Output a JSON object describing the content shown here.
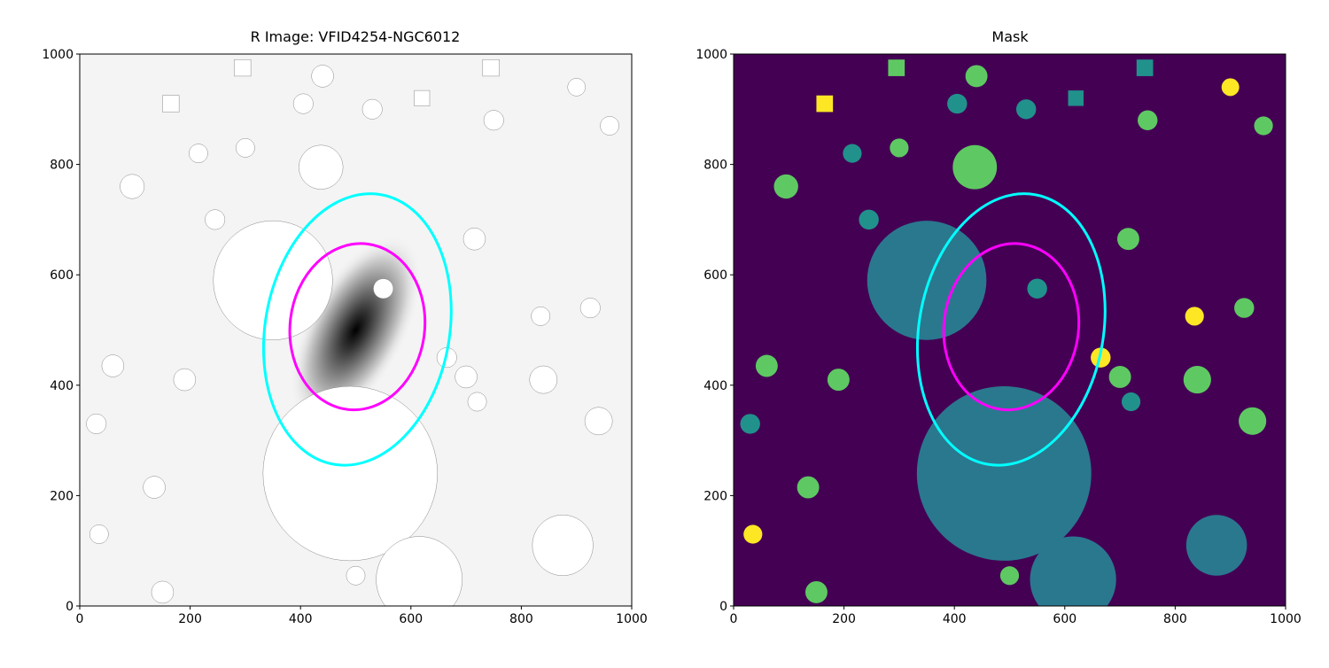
{
  "chart_data": [
    {
      "type": "image",
      "title": "R Image: VFID4254-NGC6012",
      "colormap": "gray_r",
      "xlim": [
        0,
        1000
      ],
      "ylim": [
        0,
        1000
      ],
      "xticks": [
        "0",
        "200",
        "400",
        "600",
        "800",
        "1000"
      ],
      "yticks": [
        "0",
        "200",
        "400",
        "600",
        "800",
        "1000"
      ],
      "galaxy_center": [
        500,
        500
      ],
      "ellipses": [
        {
          "color": "#00ffff",
          "center": [
            503,
            501
          ],
          "semi_major": 248,
          "semi_minor": 167,
          "angle_deg": 80
        },
        {
          "color": "#ff00ff",
          "center": [
            503,
            506
          ],
          "semi_major": 151,
          "semi_minor": 122,
          "angle_deg": 83
        }
      ],
      "masked_sources": [
        {
          "x": 350,
          "y": 590,
          "r": 108,
          "shape": "circle"
        },
        {
          "x": 490,
          "y": 240,
          "r": 158,
          "shape": "circle"
        },
        {
          "x": 615,
          "y": 48,
          "r": 78,
          "shape": "circle"
        },
        {
          "x": 875,
          "y": 110,
          "r": 55,
          "shape": "circle"
        },
        {
          "x": 437,
          "y": 795,
          "r": 40,
          "shape": "circle"
        },
        {
          "x": 550,
          "y": 575,
          "r": 18,
          "shape": "circle"
        },
        {
          "x": 840,
          "y": 410,
          "r": 25,
          "shape": "circle"
        },
        {
          "x": 940,
          "y": 335,
          "r": 25,
          "shape": "circle"
        },
        {
          "x": 95,
          "y": 760,
          "r": 22,
          "shape": "circle"
        },
        {
          "x": 135,
          "y": 215,
          "r": 20,
          "shape": "circle"
        },
        {
          "x": 190,
          "y": 410,
          "r": 20,
          "shape": "circle"
        },
        {
          "x": 245,
          "y": 700,
          "r": 18,
          "shape": "circle"
        },
        {
          "x": 715,
          "y": 665,
          "r": 20,
          "shape": "circle"
        },
        {
          "x": 750,
          "y": 880,
          "r": 18,
          "shape": "circle"
        },
        {
          "x": 530,
          "y": 900,
          "r": 18,
          "shape": "circle"
        },
        {
          "x": 700,
          "y": 415,
          "r": 20,
          "shape": "circle"
        },
        {
          "x": 60,
          "y": 435,
          "r": 20,
          "shape": "circle"
        },
        {
          "x": 30,
          "y": 330,
          "r": 18,
          "shape": "circle"
        },
        {
          "x": 165,
          "y": 910,
          "r": 15,
          "shape": "square"
        },
        {
          "x": 500,
          "y": 55,
          "r": 17,
          "shape": "circle"
        },
        {
          "x": 405,
          "y": 910,
          "r": 18,
          "shape": "circle"
        },
        {
          "x": 440,
          "y": 960,
          "r": 20,
          "shape": "circle"
        },
        {
          "x": 295,
          "y": 975,
          "r": 15,
          "shape": "square"
        },
        {
          "x": 745,
          "y": 975,
          "r": 15,
          "shape": "square"
        },
        {
          "x": 900,
          "y": 940,
          "r": 16,
          "shape": "circle"
        },
        {
          "x": 960,
          "y": 870,
          "r": 17,
          "shape": "circle"
        },
        {
          "x": 620,
          "y": 920,
          "r": 14,
          "shape": "square"
        },
        {
          "x": 835,
          "y": 525,
          "r": 17,
          "shape": "circle"
        },
        {
          "x": 925,
          "y": 540,
          "r": 18,
          "shape": "circle"
        },
        {
          "x": 720,
          "y": 370,
          "r": 17,
          "shape": "circle"
        },
        {
          "x": 665,
          "y": 450,
          "r": 18,
          "shape": "circle"
        },
        {
          "x": 150,
          "y": 25,
          "r": 20,
          "shape": "circle"
        },
        {
          "x": 215,
          "y": 820,
          "r": 17,
          "shape": "circle"
        },
        {
          "x": 35,
          "y": 130,
          "r": 17,
          "shape": "circle"
        },
        {
          "x": 300,
          "y": 830,
          "r": 17,
          "shape": "circle"
        }
      ]
    },
    {
      "type": "image",
      "title": "Mask",
      "colormap": "viridis",
      "xlim": [
        0,
        1000
      ],
      "ylim": [
        0,
        1000
      ],
      "xticks": [
        "0",
        "200",
        "400",
        "600",
        "800",
        "1000"
      ],
      "yticks": [
        "0",
        "200",
        "400",
        "600",
        "800",
        "1000"
      ],
      "colors": {
        "background": "#440154",
        "teal": "#2a788e",
        "green": "#5ec962",
        "yellow": "#fde725"
      },
      "ellipses": [
        {
          "color": "#00ffff",
          "center": [
            503,
            501
          ],
          "semi_major": 248,
          "semi_minor": 167,
          "angle_deg": 80
        },
        {
          "color": "#ff00ff",
          "center": [
            503,
            506
          ],
          "semi_major": 151,
          "semi_minor": 122,
          "angle_deg": 83
        }
      ]
    }
  ]
}
